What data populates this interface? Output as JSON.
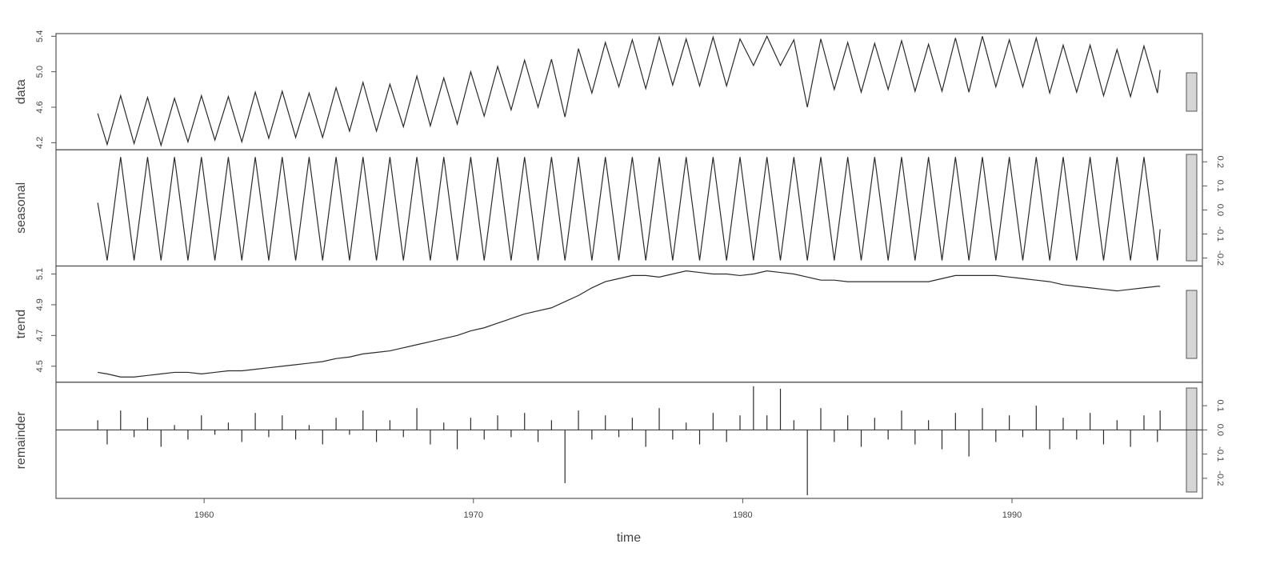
{
  "chart_data": {
    "type": "line",
    "x_label": "time",
    "color": "#2b2b2b",
    "xlim": [
      1954.5,
      1997.07
    ],
    "xticks": [
      1960,
      1970,
      1980,
      1990
    ],
    "x": [
      1956.05,
      1956.4,
      1956.9,
      1957.4,
      1957.9,
      1958.4,
      1958.9,
      1959.4,
      1959.9,
      1960.4,
      1960.9,
      1961.4,
      1961.9,
      1962.4,
      1962.9,
      1963.4,
      1963.9,
      1964.4,
      1964.9,
      1965.4,
      1965.9,
      1966.4,
      1966.9,
      1967.4,
      1967.9,
      1968.4,
      1968.9,
      1969.4,
      1969.9,
      1970.4,
      1970.9,
      1971.4,
      1971.9,
      1972.4,
      1972.9,
      1973.4,
      1973.9,
      1974.4,
      1974.9,
      1975.4,
      1975.9,
      1976.4,
      1976.9,
      1977.4,
      1977.9,
      1978.4,
      1978.9,
      1979.4,
      1979.9,
      1980.4,
      1980.9,
      1981.4,
      1981.9,
      1982.4,
      1982.9,
      1983.4,
      1983.9,
      1984.4,
      1984.9,
      1985.4,
      1985.9,
      1986.4,
      1986.9,
      1987.4,
      1987.9,
      1988.4,
      1988.9,
      1989.4,
      1989.9,
      1990.4,
      1990.9,
      1991.4,
      1991.9,
      1992.4,
      1992.9,
      1993.4,
      1993.9,
      1994.4,
      1994.9,
      1995.4,
      1995.5
    ],
    "series": [
      {
        "name": "data",
        "style": "line",
        "tick_side": "left",
        "ylim": [
          4.12,
          5.43
        ],
        "yticks": [
          4.2,
          4.6,
          {
            "value": 5,
            "label": "5.0"
          },
          5.4
        ],
        "values": [
          4.53,
          4.18,
          4.73,
          4.19,
          4.71,
          4.17,
          4.7,
          4.21,
          4.73,
          4.23,
          4.72,
          4.21,
          4.77,
          4.25,
          4.78,
          4.26,
          4.76,
          4.26,
          4.82,
          4.33,
          4.88,
          4.33,
          4.86,
          4.38,
          4.95,
          4.39,
          4.93,
          4.41,
          5.0,
          4.5,
          5.06,
          4.57,
          5.13,
          4.6,
          5.14,
          4.49,
          5.26,
          4.76,
          5.33,
          4.83,
          5.36,
          4.81,
          5.39,
          4.85,
          5.37,
          4.84,
          5.39,
          4.84,
          5.37,
          5.07,
          5.4,
          5.07,
          5.36,
          4.6,
          5.37,
          4.8,
          5.33,
          4.77,
          5.32,
          4.8,
          5.35,
          4.78,
          5.31,
          4.78,
          5.38,
          4.77,
          5.4,
          4.83,
          5.36,
          4.83,
          5.38,
          4.76,
          5.3,
          4.77,
          5.3,
          4.73,
          5.25,
          4.72,
          5.29,
          4.76,
          5.02
        ]
      },
      {
        "name": "seasonal",
        "style": "line",
        "tick_side": "right",
        "ylim": [
          -0.233,
          0.25
        ],
        "yticks": [
          -0.2,
          -0.1,
          {
            "value": 0,
            "label": "0.0"
          },
          0.1,
          0.2
        ],
        "values": [
          0.03,
          -0.21,
          0.22,
          -0.21,
          0.22,
          -0.21,
          0.22,
          -0.21,
          0.22,
          -0.21,
          0.22,
          -0.21,
          0.22,
          -0.21,
          0.22,
          -0.21,
          0.22,
          -0.21,
          0.22,
          -0.21,
          0.22,
          -0.21,
          0.22,
          -0.21,
          0.22,
          -0.21,
          0.22,
          -0.21,
          0.22,
          -0.21,
          0.22,
          -0.21,
          0.22,
          -0.21,
          0.22,
          -0.21,
          0.22,
          -0.21,
          0.22,
          -0.21,
          0.22,
          -0.21,
          0.22,
          -0.21,
          0.22,
          -0.21,
          0.22,
          -0.21,
          0.22,
          -0.21,
          0.22,
          -0.21,
          0.22,
          -0.21,
          0.22,
          -0.21,
          0.22,
          -0.21,
          0.22,
          -0.21,
          0.22,
          -0.21,
          0.22,
          -0.21,
          0.22,
          -0.21,
          0.22,
          -0.21,
          0.22,
          -0.21,
          0.22,
          -0.21,
          0.22,
          -0.21,
          0.22,
          -0.21,
          0.22,
          -0.21,
          0.22,
          -0.21,
          -0.08
        ]
      },
      {
        "name": "trend",
        "style": "line",
        "tick_side": "left",
        "ylim": [
          4.396,
          5.152
        ],
        "yticks": [
          4.5,
          4.7,
          4.9,
          5.1
        ],
        "values": [
          4.46,
          4.45,
          4.43,
          4.43,
          4.44,
          4.45,
          4.46,
          4.46,
          4.45,
          4.46,
          4.47,
          4.47,
          4.48,
          4.49,
          4.5,
          4.51,
          4.52,
          4.53,
          4.55,
          4.56,
          4.58,
          4.59,
          4.6,
          4.62,
          4.64,
          4.66,
          4.68,
          4.7,
          4.73,
          4.75,
          4.78,
          4.81,
          4.84,
          4.86,
          4.88,
          4.92,
          4.96,
          5.01,
          5.05,
          5.07,
          5.09,
          5.09,
          5.08,
          5.1,
          5.12,
          5.11,
          5.1,
          5.1,
          5.09,
          5.1,
          5.12,
          5.11,
          5.1,
          5.08,
          5.06,
          5.06,
          5.05,
          5.05,
          5.05,
          5.05,
          5.05,
          5.05,
          5.05,
          5.07,
          5.09,
          5.09,
          5.09,
          5.09,
          5.08,
          5.07,
          5.06,
          5.05,
          5.03,
          5.02,
          5.01,
          5.0,
          4.99,
          5.0,
          5.01,
          5.02,
          5.02
        ]
      },
      {
        "name": "remainder",
        "style": "spikes",
        "tick_side": "right",
        "ylim": [
          -0.283,
          0.197
        ],
        "yticks": [
          -0.2,
          -0.1,
          {
            "value": 0,
            "label": "0.0"
          },
          0.1
        ],
        "values": [
          0.04,
          -0.06,
          0.08,
          -0.03,
          0.05,
          -0.07,
          0.02,
          -0.04,
          0.06,
          -0.02,
          0.03,
          -0.05,
          0.07,
          -0.03,
          0.06,
          -0.04,
          0.02,
          -0.06,
          0.05,
          -0.02,
          0.08,
          -0.05,
          0.04,
          -0.03,
          0.09,
          -0.06,
          0.03,
          -0.08,
          0.05,
          -0.04,
          0.06,
          -0.03,
          0.07,
          -0.05,
          0.04,
          -0.22,
          0.08,
          -0.04,
          0.06,
          -0.03,
          0.05,
          -0.07,
          0.09,
          -0.04,
          0.03,
          -0.06,
          0.07,
          -0.05,
          0.06,
          0.18,
          0.06,
          0.17,
          0.04,
          -0.27,
          0.09,
          -0.05,
          0.06,
          -0.07,
          0.05,
          -0.04,
          0.08,
          -0.06,
          0.04,
          -0.08,
          0.07,
          -0.11,
          0.09,
          -0.05,
          0.06,
          -0.03,
          0.1,
          -0.08,
          0.05,
          -0.04,
          0.07,
          -0.06,
          0.04,
          -0.07,
          0.06,
          -0.05,
          0.08
        ]
      }
    ]
  }
}
